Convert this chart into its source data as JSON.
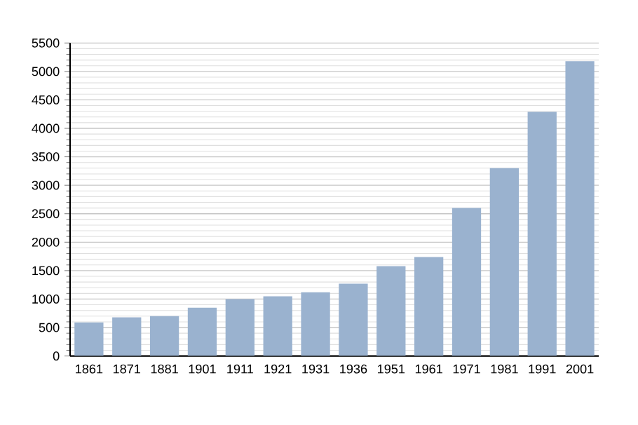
{
  "chart_data": {
    "type": "bar",
    "categories": [
      "1861",
      "1871",
      "1881",
      "1901",
      "1911",
      "1921",
      "1931",
      "1936",
      "1951",
      "1961",
      "1971",
      "1981",
      "1991",
      "2001"
    ],
    "values": [
      590,
      680,
      700,
      850,
      1000,
      1050,
      1120,
      1270,
      1580,
      1740,
      2600,
      3300,
      4290,
      5180
    ],
    "color": "#9ab2cf",
    "ylim": [
      0,
      5500
    ],
    "yticks": [
      0,
      500,
      1000,
      1500,
      2000,
      2500,
      3000,
      3500,
      4000,
      4500,
      5000,
      5500
    ],
    "grid": "y"
  }
}
